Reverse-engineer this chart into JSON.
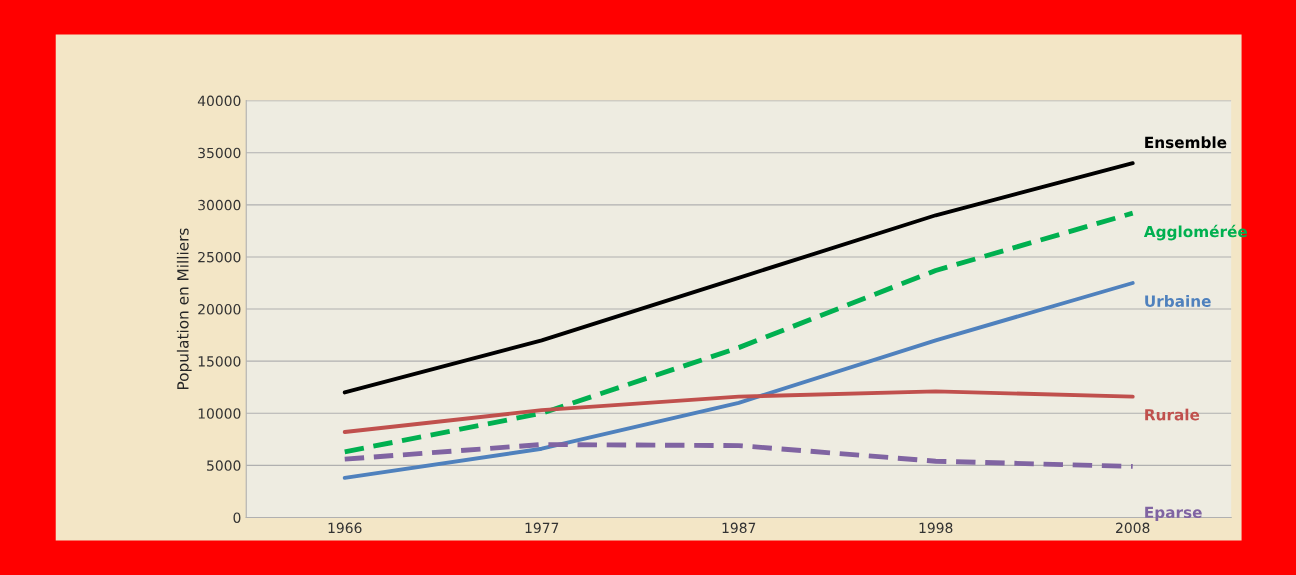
{
  "chart_data": {
    "type": "line",
    "ylabel": "Population en Milliers",
    "categories": [
      "1966",
      "1977",
      "1987",
      "1998",
      "2008"
    ],
    "series": [
      {
        "name": "Ensemble",
        "color": "#000000",
        "line_style": "solid",
        "values": [
          12000,
          17000,
          23000,
          29000,
          34000
        ]
      },
      {
        "name": "Agglomérée",
        "color": "#00b050",
        "line_style": "dashed",
        "values": [
          6300,
          10000,
          16300,
          23700,
          29200
        ]
      },
      {
        "name": "Urbaine",
        "color": "#4f81bd",
        "line_style": "solid",
        "values": [
          3800,
          6600,
          11000,
          17000,
          22500
        ]
      },
      {
        "name": "Rurale",
        "color": "#c0504d",
        "line_style": "solid",
        "values": [
          8200,
          10300,
          11600,
          12100,
          11600
        ]
      },
      {
        "name": "Eparse",
        "color": "#8064a2",
        "line_style": "dashed",
        "values": [
          5600,
          7000,
          6900,
          5400,
          4900
        ]
      }
    ],
    "ylim": [
      0,
      40000
    ],
    "yticks": [
      0,
      5000,
      10000,
      15000,
      20000,
      25000,
      30000,
      35000,
      40000
    ],
    "grid": "y"
  }
}
